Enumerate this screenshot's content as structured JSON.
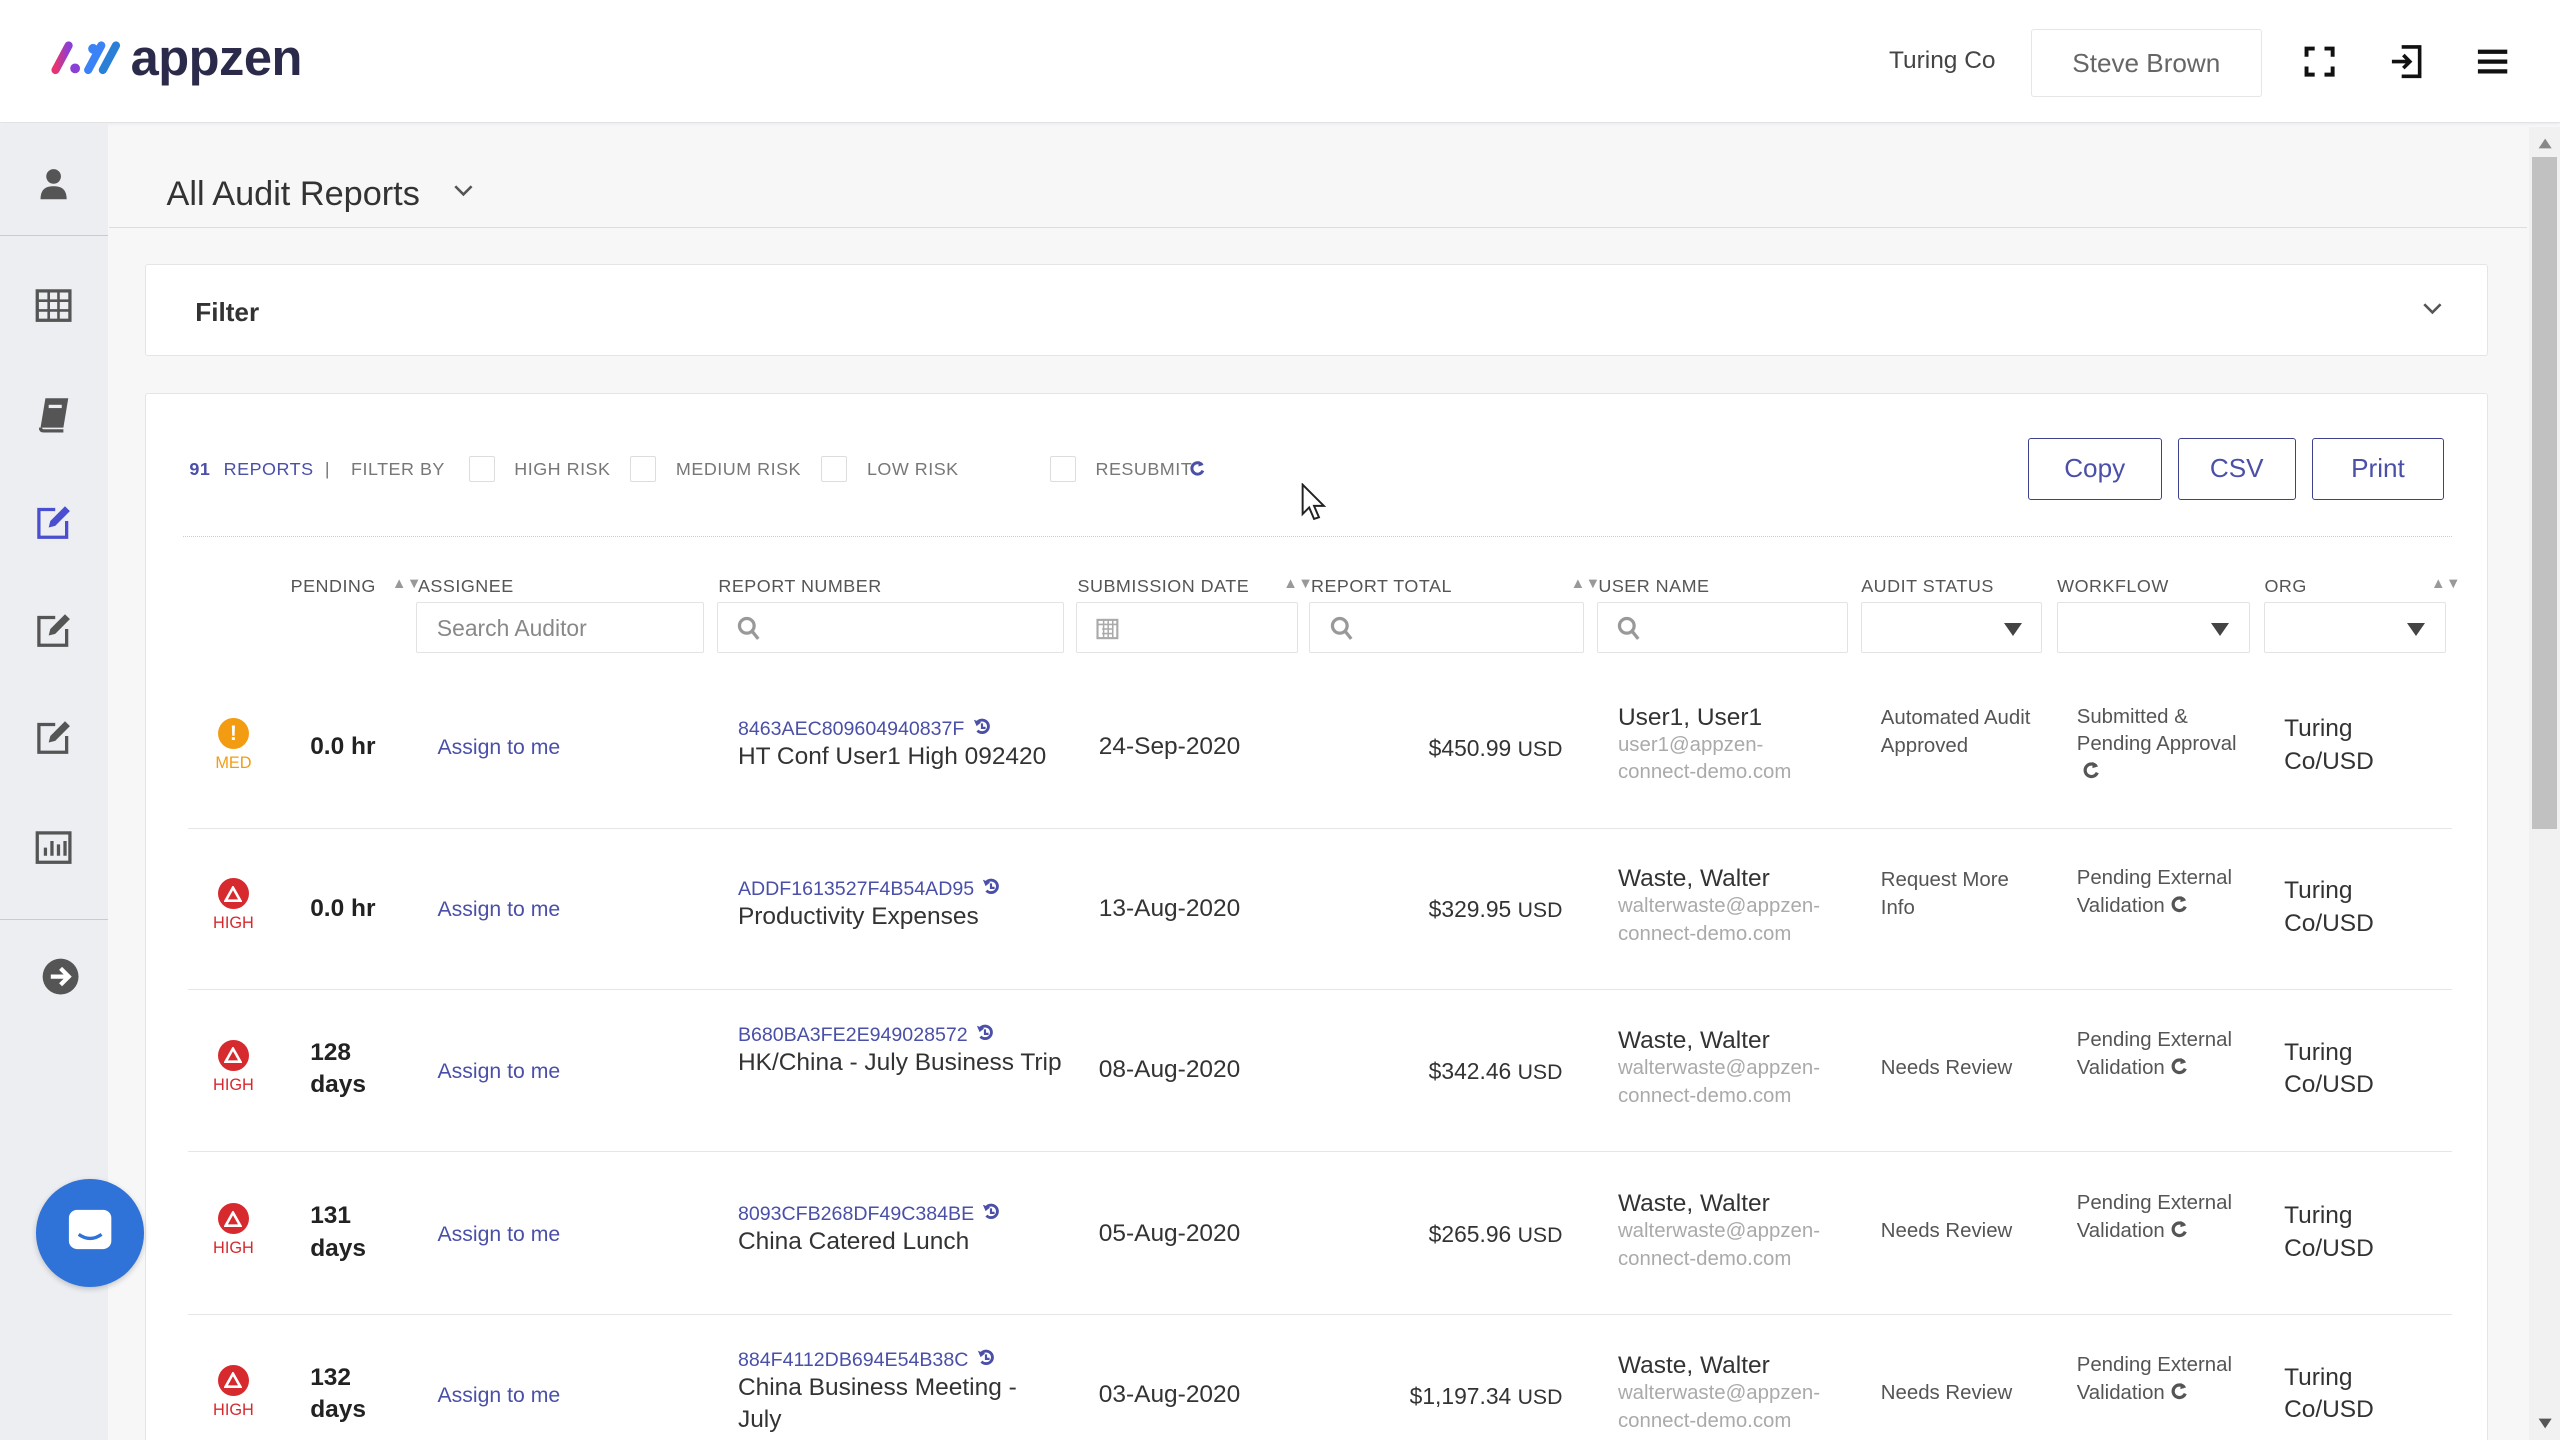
{
  "brand": {
    "logo_text": "appzen",
    "colors": {
      "accent": "#4a4fa8",
      "high": "#d62a2f",
      "med": "#f39c12",
      "chat": "#2f72d8"
    }
  },
  "header": {
    "org": "Turing Co",
    "user": "Steve Brown",
    "icons": [
      "fullscreen-icon",
      "logout-icon",
      "menu-icon"
    ]
  },
  "sidebar": {
    "icons": [
      "user-icon",
      "grid-icon",
      "book-icon",
      "edit-icon",
      "edit-icon",
      "edit-icon",
      "bar-chart-icon",
      "arrow-right-circle-icon"
    ],
    "active_index": 3
  },
  "page": {
    "title": "All Audit Reports"
  },
  "filter": {
    "title": "Filter"
  },
  "toolbar": {
    "count": "91",
    "count_label": "REPORTS",
    "separator": "|",
    "filter_by": "FILTER BY",
    "high_risk": "HIGH RISK",
    "medium_risk": "MEDIUM RISK",
    "low_risk": "LOW RISK",
    "resubmit": "RESUBMIT",
    "copy": "Copy",
    "csv": "CSV",
    "print": "Print"
  },
  "columns": {
    "pending": "PENDING",
    "assignee": "ASSIGNEE",
    "report_number": "REPORT NUMBER",
    "submission_date": "SUBMISSION DATE",
    "report_total": "REPORT TOTAL",
    "user_name": "USER NAME",
    "audit_status": "AUDIT STATUS",
    "workflow": "WORKFLOW",
    "org": "ORG"
  },
  "column_filters": {
    "assignee_placeholder": "Search Auditor"
  },
  "rows": [
    {
      "risk": "MED",
      "pending": "0.0 hr",
      "assign": "Assign to me",
      "report_id": "8463AEC809604940837F",
      "report_name": "HT Conf User1 High 092420",
      "date": "24-Sep-2020",
      "amount": "$450.99",
      "currency": "USD",
      "user": "User1, User1",
      "email": "user1@appzen-connect-demo.com",
      "audit_status": "Automated Audit Approved",
      "workflow": "Submitted & Pending Approval",
      "org": "Turing Co/USD"
    },
    {
      "risk": "HIGH",
      "pending": "0.0 hr",
      "assign": "Assign to me",
      "report_id": "ADDF1613527F4B54AD95",
      "report_name": "Productivity Expenses",
      "date": "13-Aug-2020",
      "amount": "$329.95",
      "currency": "USD",
      "user": "Waste, Walter",
      "email": "walterwaste@appzen-connect-demo.com",
      "audit_status": "Request More Info",
      "workflow": "Pending External Validation",
      "org": "Turing Co/USD"
    },
    {
      "risk": "HIGH",
      "pending": "128 days",
      "assign": "Assign to me",
      "report_id": "B680BA3FE2E949028572",
      "report_name": "HK/China - July Business Trip",
      "date": "08-Aug-2020",
      "amount": "$342.46",
      "currency": "USD",
      "user": "Waste, Walter",
      "email": "walterwaste@appzen-connect-demo.com",
      "audit_status": "Needs Review",
      "workflow": "Pending External Validation",
      "org": "Turing Co/USD"
    },
    {
      "risk": "HIGH",
      "pending": "131 days",
      "assign": "Assign to me",
      "report_id": "8093CFB268DF49C384BE",
      "report_name": "China Catered Lunch",
      "date": "05-Aug-2020",
      "amount": "$265.96",
      "currency": "USD",
      "user": "Waste, Walter",
      "email": "walterwaste@appzen-connect-demo.com",
      "audit_status": "Needs Review",
      "workflow": "Pending External Validation",
      "org": "Turing Co/USD"
    },
    {
      "risk": "HIGH",
      "pending": "132 days",
      "assign": "Assign to me",
      "report_id": "884F4112DB694E54B38C",
      "report_name": "China Business Meeting - July",
      "date": "03-Aug-2020",
      "amount": "$1,197.34",
      "currency": "USD",
      "user": "Waste, Walter",
      "email": "walterwaste@appzen-connect-demo.com",
      "audit_status": "Needs Review",
      "workflow": "Pending External Validation",
      "org": "Turing Co/USD"
    }
  ]
}
